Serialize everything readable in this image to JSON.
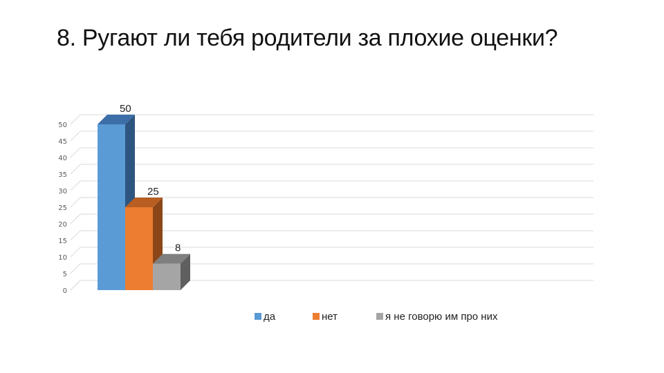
{
  "title": "8. Ругают ли тебя родители за плохие оценки?",
  "chart_data": {
    "type": "bar",
    "style": "3d-clustered",
    "categories": [
      "да",
      "нет",
      "я не говорю им про них"
    ],
    "values": [
      50,
      25,
      8
    ],
    "data_labels": [
      "50",
      "25",
      "8"
    ],
    "ylim": [
      0,
      50
    ],
    "y_ticks": [
      "0",
      "5",
      "10",
      "15",
      "20",
      "25",
      "30",
      "35",
      "40",
      "45",
      "50"
    ],
    "grid": true,
    "legend_position": "bottom",
    "colors": [
      "#5b9bd5",
      "#ed7d31",
      "#a5a5a5"
    ],
    "side_colors": [
      "#2e5580",
      "#8a4618",
      "#5f5f5f"
    ],
    "top_colors": [
      "#3c6ea8",
      "#b85e22",
      "#7f7f7f"
    ]
  }
}
